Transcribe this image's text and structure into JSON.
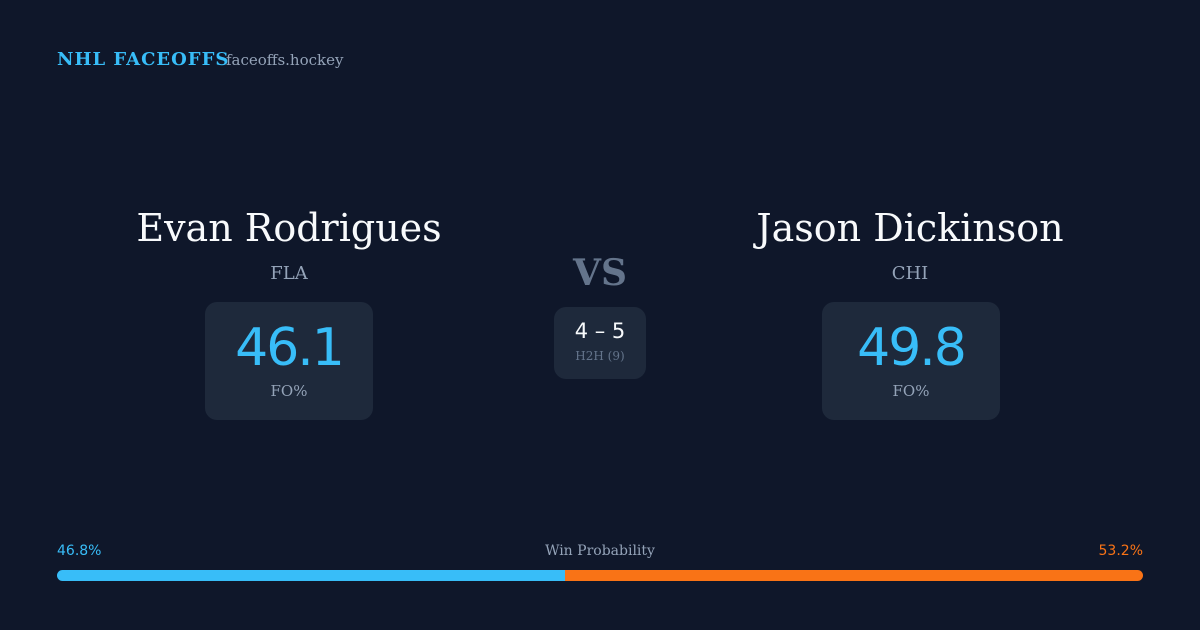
{
  "header": {
    "brand": "NHL FACEOFFS",
    "site": "faceoffs.hockey"
  },
  "players": [
    {
      "name": "Evan Rodrigues",
      "team": "FLA",
      "fo_pct": 46.1,
      "fo_label": "FO%"
    },
    {
      "name": "Jason Dickinson",
      "team": "CHI",
      "fo_pct": 49.8,
      "fo_label": "FO%"
    }
  ],
  "vs": "VS",
  "h2h": {
    "score": "4 – 5",
    "label": "H2H (9)"
  },
  "win_probability": {
    "label": "Win Probability",
    "left": {
      "value": 46.8,
      "label": "46.8%",
      "color": "#38bdf8"
    },
    "right": {
      "value": 53.2,
      "label": "53.2%",
      "color": "#f97316"
    }
  }
}
